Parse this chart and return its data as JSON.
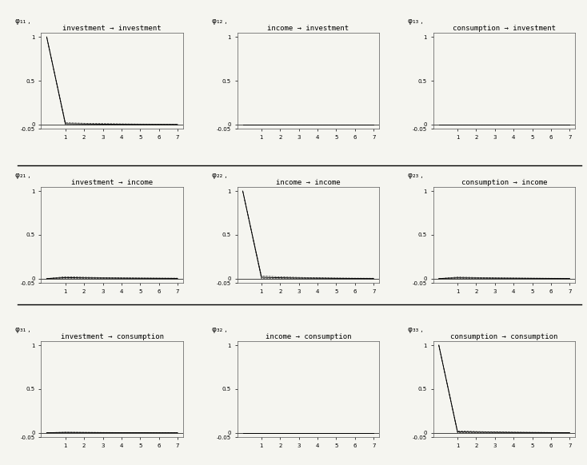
{
  "rows": 3,
  "cols": 3,
  "horizon": 8,
  "subplot_labels": [
    [
      "φ₁₁ ,",
      "φ₁₂ ,",
      "φ₁₃ ,"
    ],
    [
      "φ₂₁ ,",
      "φ₂₂ ,",
      "φ₂₃ ,"
    ],
    [
      "φ₃₁ ,",
      "φ₃₂ ,",
      "φ₃₃ ,"
    ]
  ],
  "subplot_titles": [
    [
      "investment → investment",
      "income → investment",
      "consumption → investment"
    ],
    [
      "investment → income",
      "income → income",
      "consumption → income"
    ],
    [
      "investment → consumption",
      "income → consumption",
      "consumption → consumption"
    ]
  ],
  "irf_data": {
    "row0_col0": {
      "main": [
        1.0,
        0.008,
        0.005,
        0.003,
        0.002,
        0.001,
        0.001,
        0.0
      ],
      "upper": [
        1.0,
        0.02,
        0.014,
        0.01,
        0.007,
        0.005,
        0.004,
        0.003
      ],
      "lower": [
        1.0,
        -0.004,
        -0.004,
        -0.004,
        -0.003,
        -0.003,
        -0.002,
        -0.003
      ],
      "ylim": [
        -0.05,
        1.05
      ],
      "yticks": [
        -0.05,
        0.0,
        0.5,
        1.0
      ],
      "yticklabels": [
        "-0.05",
        "0",
        "0.5",
        "1"
      ]
    },
    "row0_col1": {
      "main": [
        0.0,
        0.0,
        0.0,
        0.0,
        0.0,
        0.0,
        0.0,
        0.0
      ],
      "upper": [
        0.0,
        0.0,
        0.0,
        0.0,
        0.0,
        0.0,
        0.0,
        0.0
      ],
      "lower": [
        0.0,
        0.0,
        0.0,
        0.0,
        0.0,
        0.0,
        0.0,
        0.0
      ],
      "ylim": [
        -0.05,
        1.05
      ],
      "yticks": [
        -0.05,
        0.0,
        0.5,
        1.0
      ],
      "yticklabels": [
        "-0.05",
        "0",
        "0.5",
        "1"
      ]
    },
    "row0_col2": {
      "main": [
        0.0,
        0.0,
        0.0,
        0.0,
        0.0,
        0.0,
        0.0,
        0.0
      ],
      "upper": [
        0.0,
        0.0,
        0.0,
        0.0,
        0.0,
        0.0,
        0.0,
        0.0
      ],
      "lower": [
        0.0,
        0.0,
        0.0,
        0.0,
        0.0,
        0.0,
        0.0,
        0.0
      ],
      "ylim": [
        -0.05,
        1.05
      ],
      "yticks": [
        -0.05,
        0.0,
        0.5,
        1.0
      ],
      "yticklabels": [
        "-0.05",
        "0",
        "0.5",
        "1"
      ]
    },
    "row1_col0": {
      "main": [
        0.0,
        0.012,
        0.009,
        0.007,
        0.005,
        0.004,
        0.003,
        0.002
      ],
      "upper": [
        0.0,
        0.022,
        0.016,
        0.012,
        0.009,
        0.007,
        0.006,
        0.005
      ],
      "lower": [
        0.0,
        0.002,
        0.002,
        0.002,
        0.001,
        0.001,
        0.0,
        -0.001
      ],
      "ylim": [
        -0.05,
        1.05
      ],
      "yticks": [
        -0.05,
        0.0,
        0.5,
        1.0
      ],
      "yticklabels": [
        "-0.05",
        "0",
        "0.5",
        "1"
      ]
    },
    "row1_col1": {
      "main": [
        1.0,
        0.015,
        0.01,
        0.007,
        0.005,
        0.003,
        0.002,
        0.001
      ],
      "upper": [
        1.0,
        0.03,
        0.02,
        0.014,
        0.01,
        0.007,
        0.005,
        0.004
      ],
      "lower": [
        1.0,
        0.0,
        0.0,
        0.0,
        0.0,
        -0.001,
        -0.001,
        -0.002
      ],
      "ylim": [
        -0.05,
        1.05
      ],
      "yticks": [
        -0.05,
        0.0,
        0.5,
        1.0
      ],
      "yticklabels": [
        "-0.05",
        "0",
        "0.5",
        "1"
      ]
    },
    "row1_col2": {
      "main": [
        0.0,
        0.009,
        0.007,
        0.005,
        0.004,
        0.003,
        0.002,
        0.001
      ],
      "upper": [
        0.0,
        0.018,
        0.013,
        0.009,
        0.007,
        0.005,
        0.004,
        0.003
      ],
      "lower": [
        0.0,
        0.0,
        0.001,
        0.001,
        0.001,
        0.001,
        0.0,
        -0.001
      ],
      "ylim": [
        -0.05,
        1.05
      ],
      "yticks": [
        -0.05,
        0.0,
        0.5,
        1.0
      ],
      "yticklabels": [
        "-0.05",
        "0",
        "0.5",
        "1"
      ]
    },
    "row2_col0": {
      "main": [
        0.0,
        0.003,
        0.002,
        0.001,
        0.001,
        0.001,
        0.0,
        0.0
      ],
      "upper": [
        0.0,
        0.006,
        0.004,
        0.003,
        0.002,
        0.002,
        0.001,
        0.001
      ],
      "lower": [
        0.0,
        0.0,
        0.0,
        -0.001,
        -0.001,
        -0.001,
        -0.001,
        -0.001
      ],
      "ylim": [
        -0.05,
        1.05
      ],
      "yticks": [
        -0.05,
        0.0,
        0.5,
        1.0
      ],
      "yticklabels": [
        "-0.05",
        "0",
        "0.5",
        "1"
      ]
    },
    "row2_col1": {
      "main": [
        0.0,
        0.0,
        0.0,
        0.0,
        0.0,
        0.0,
        0.0,
        0.0
      ],
      "upper": [
        0.0,
        0.0,
        0.0,
        0.0,
        0.0,
        0.0,
        0.0,
        0.0
      ],
      "lower": [
        0.0,
        0.0,
        0.0,
        0.0,
        0.0,
        0.0,
        0.0,
        0.0
      ],
      "ylim": [
        -0.05,
        1.05
      ],
      "yticks": [
        -0.05,
        0.0,
        0.5,
        1.0
      ],
      "yticklabels": [
        "-0.05",
        "0",
        "0.5",
        "1"
      ]
    },
    "row2_col2": {
      "main": [
        1.0,
        0.01,
        0.007,
        0.005,
        0.003,
        0.002,
        0.001,
        0.001
      ],
      "upper": [
        1.0,
        0.02,
        0.014,
        0.009,
        0.006,
        0.004,
        0.003,
        0.002
      ],
      "lower": [
        1.0,
        0.0,
        0.0,
        0.001,
        0.0,
        -0.001,
        -0.001,
        -0.001
      ],
      "ylim": [
        -0.05,
        1.05
      ],
      "yticks": [
        -0.05,
        0.0,
        0.5,
        1.0
      ],
      "yticklabels": [
        "-0.05",
        "0",
        "0.5",
        "1"
      ]
    }
  },
  "line_color": "#000000",
  "ci_linestyle": "--",
  "zero_color": "#000000",
  "background_color": "#f5f5f0",
  "title_fontsize": 6.5,
  "tick_fontsize": 5,
  "subplot_label_fontsize": 6.5
}
